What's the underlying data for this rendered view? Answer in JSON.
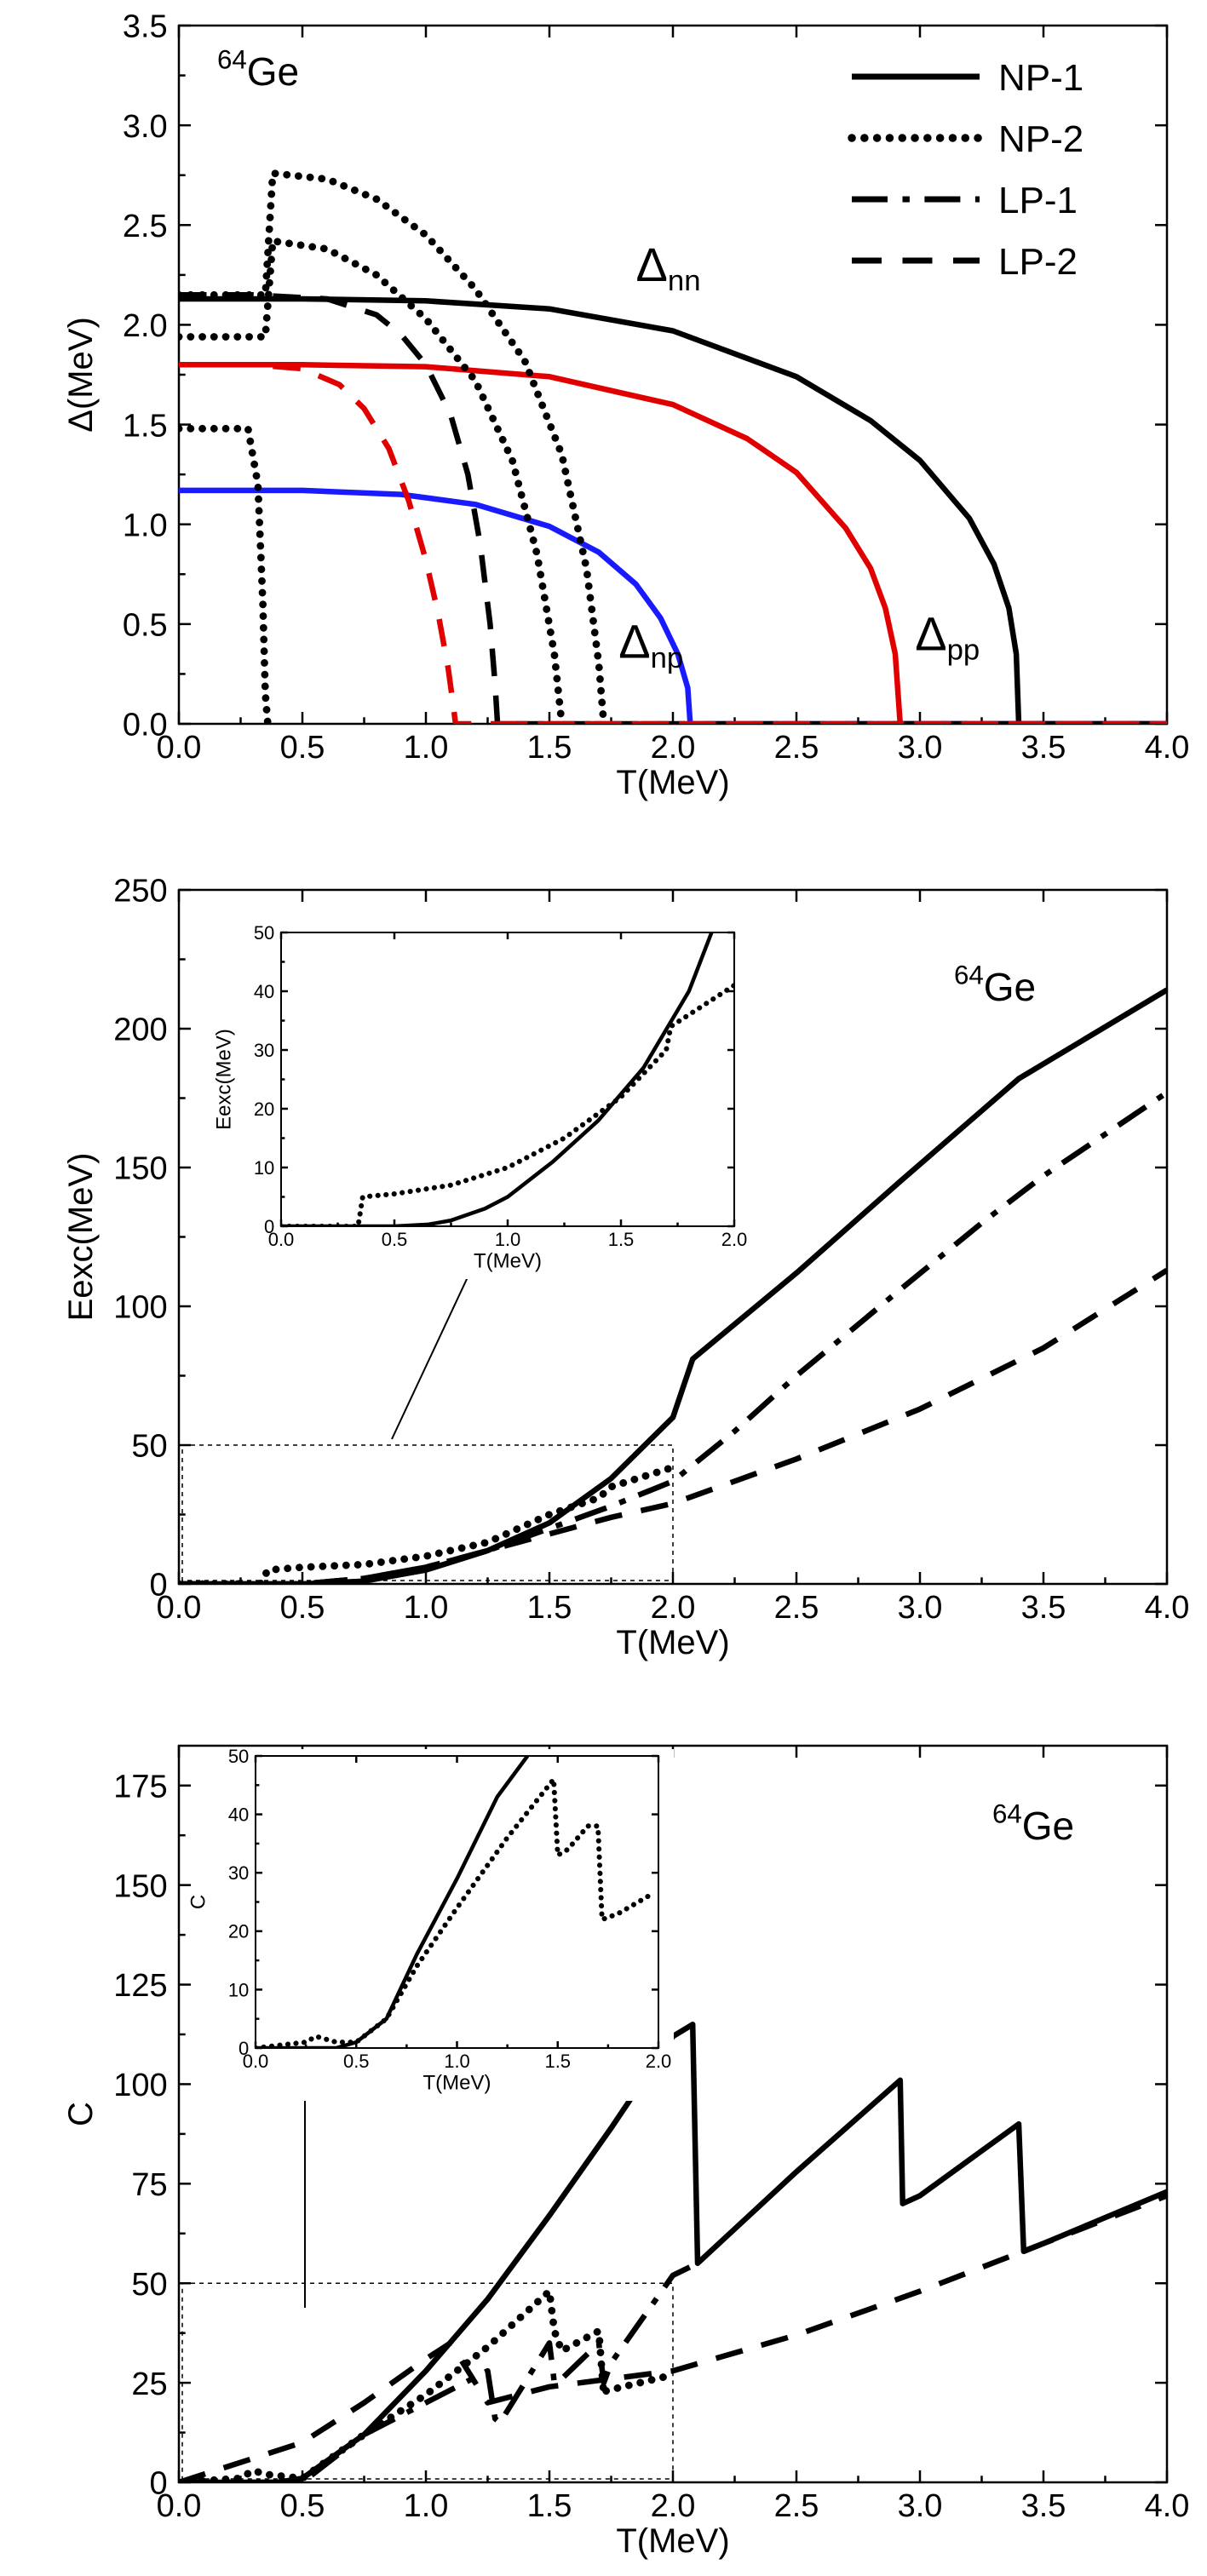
{
  "chart_data": [
    {
      "type": "line",
      "nucleus_label": {
        "mass": "64",
        "symbol": "Ge"
      },
      "xlabel": "T(MeV)",
      "ylabel": "Δ(MeV)",
      "xlim": [
        0,
        4.0
      ],
      "ylim": [
        0,
        3.5
      ],
      "xticks": [
        "0.0",
        "0.5",
        "1.0",
        "1.5",
        "2.0",
        "2.5",
        "3.0",
        "3.5",
        "4.0"
      ],
      "yticks": [
        "0.0",
        "0.5",
        "1.0",
        "1.5",
        "2.0",
        "2.5",
        "3.0",
        "3.5"
      ],
      "legend": {
        "position": "top-right",
        "entries": [
          {
            "name": "NP-1",
            "style": "solid"
          },
          {
            "name": "NP-2",
            "style": "dotted"
          },
          {
            "name": "LP-1",
            "style": "dashdot"
          },
          {
            "name": "LP-2",
            "style": "dashed"
          }
        ]
      },
      "annotations": [
        {
          "text": "Δ",
          "sub": "nn",
          "x": 1.85,
          "y": 2.22
        },
        {
          "text": "Δ",
          "sub": "pp",
          "x": 2.98,
          "y": 0.37
        },
        {
          "text": "Δ",
          "sub": "np",
          "x": 1.78,
          "y": 0.33
        }
      ],
      "series": [
        {
          "style": "solid",
          "color": "#000000",
          "x": [
            0,
            0.5,
            1.0,
            1.5,
            2.0,
            2.5,
            2.8,
            3.0,
            3.2,
            3.3,
            3.36,
            3.39,
            3.4,
            4.0
          ],
          "y": [
            2.13,
            2.13,
            2.12,
            2.08,
            1.97,
            1.74,
            1.52,
            1.32,
            1.03,
            0.8,
            0.58,
            0.35,
            0,
            0
          ]
        },
        {
          "style": "solid",
          "color": "#e00000",
          "x": [
            0,
            0.5,
            1.0,
            1.5,
            2.0,
            2.3,
            2.5,
            2.7,
            2.8,
            2.86,
            2.9,
            2.92,
            4.0
          ],
          "y": [
            1.8,
            1.8,
            1.79,
            1.74,
            1.6,
            1.43,
            1.26,
            0.98,
            0.78,
            0.58,
            0.35,
            0,
            0
          ]
        },
        {
          "style": "solid",
          "color": "#1a1aff",
          "x": [
            0,
            0.5,
            0.9,
            1.2,
            1.5,
            1.7,
            1.85,
            1.95,
            2.02,
            2.06,
            2.07,
            4.0
          ],
          "y": [
            1.17,
            1.17,
            1.15,
            1.1,
            0.99,
            0.86,
            0.7,
            0.53,
            0.35,
            0.18,
            0,
            0
          ]
        },
        {
          "style": "dashed",
          "color": "#000000",
          "x": [
            0,
            0.3,
            0.6,
            0.8,
            0.9,
            1.0,
            1.1,
            1.17,
            1.22,
            1.26,
            1.28,
            1.29,
            4.0
          ],
          "y": [
            2.15,
            2.15,
            2.13,
            2.05,
            1.95,
            1.8,
            1.55,
            1.25,
            0.9,
            0.5,
            0.2,
            0,
            0
          ]
        },
        {
          "style": "dashed",
          "color": "#e00000",
          "x": [
            0,
            0.3,
            0.5,
            0.65,
            0.75,
            0.85,
            0.93,
            1.0,
            1.05,
            1.09,
            1.11,
            1.12,
            4.0
          ],
          "y": [
            1.8,
            1.8,
            1.78,
            1.7,
            1.58,
            1.38,
            1.12,
            0.82,
            0.55,
            0.28,
            0.1,
            0,
            0
          ]
        },
        {
          "style": "dotted",
          "color": "#000000",
          "x": [
            0,
            0.28,
            0.32,
            0.34,
            0.35,
            0.36
          ],
          "y": [
            1.48,
            1.48,
            1.2,
            0.6,
            0.15,
            0
          ]
        },
        {
          "style": "dotted",
          "color": "#000000",
          "x": [
            0,
            0.35,
            0.38,
            0.6,
            0.8,
            1.0,
            1.2,
            1.35,
            1.45,
            1.52,
            1.55
          ],
          "y": [
            1.94,
            1.94,
            2.42,
            2.38,
            2.25,
            2.03,
            1.72,
            1.32,
            0.85,
            0.35,
            0
          ]
        },
        {
          "style": "dotted",
          "color": "#000000",
          "x": [
            0,
            0.35,
            0.38,
            0.6,
            0.8,
            1.0,
            1.2,
            1.4,
            1.55,
            1.65,
            1.7,
            1.72
          ],
          "y": [
            2.15,
            2.15,
            2.76,
            2.73,
            2.63,
            2.45,
            2.18,
            1.82,
            1.35,
            0.78,
            0.3,
            0
          ]
        },
        {
          "style": "dashed",
          "color": "#e00000",
          "x": [
            1.3,
            4.0
          ],
          "y": [
            0,
            0
          ]
        }
      ]
    },
    {
      "type": "line",
      "nucleus_label": {
        "mass": "64",
        "symbol": "Ge"
      },
      "xlabel": "T(MeV)",
      "ylabel": "Eexc(MeV)",
      "xlim": [
        0,
        4.0
      ],
      "ylim": [
        0,
        250
      ],
      "xticks": [
        "0.0",
        "0.5",
        "1.0",
        "1.5",
        "2.0",
        "2.5",
        "3.0",
        "3.5",
        "4.0"
      ],
      "yticks": [
        "0",
        "50",
        "100",
        "150",
        "200",
        "250"
      ],
      "series": [
        {
          "style": "solid",
          "x": [
            0,
            0.5,
            0.75,
            1.0,
            1.25,
            1.5,
            1.75,
            2.0,
            2.08,
            2.5,
            2.92,
            3.4,
            4.0
          ],
          "y": [
            0,
            0,
            1,
            5,
            12,
            22,
            38,
            60,
            81,
            112,
            145,
            182,
            214
          ]
        },
        {
          "style": "dotted",
          "x": [
            0,
            0.33,
            0.36,
            0.5,
            0.75,
            1.0,
            1.25,
            1.5,
            1.7,
            1.75,
            2.0
          ],
          "y": [
            0,
            0,
            5,
            6,
            7,
            10,
            15,
            25,
            31,
            35,
            42
          ]
        },
        {
          "style": "dashdot",
          "x": [
            0,
            0.5,
            0.75,
            1.0,
            1.25,
            1.5,
            1.75,
            2.0,
            2.25,
            2.5,
            2.92,
            3.25,
            3.5,
            4.0
          ],
          "y": [
            0,
            0,
            2,
            6,
            12,
            20,
            28,
            37,
            55,
            75,
            106,
            130,
            147,
            177
          ]
        },
        {
          "style": "dashed",
          "x": [
            0,
            0.5,
            0.75,
            1.0,
            1.25,
            1.5,
            1.75,
            2.0,
            2.5,
            3.0,
            3.5,
            4.0
          ],
          "y": [
            0,
            0,
            2,
            6,
            12,
            18,
            24,
            29,
            45,
            63,
            85,
            113
          ]
        }
      ],
      "inset": {
        "xlabel": "T(MeV)",
        "ylabel": "Eexc(MeV)",
        "xlim": [
          0,
          2.0
        ],
        "ylim": [
          0,
          50
        ],
        "xticks": [
          "0.0",
          "0.5",
          "1.0",
          "1.5",
          "2.0"
        ],
        "yticks": [
          "0",
          "10",
          "20",
          "30",
          "40",
          "50"
        ],
        "series": [
          {
            "style": "solid",
            "x": [
              0,
              0.5,
              0.65,
              0.75,
              0.9,
              1.0,
              1.2,
              1.4,
              1.6,
              1.8,
              1.9
            ],
            "y": [
              0,
              0,
              0.3,
              1,
              3,
              5,
              11,
              18,
              27,
              40,
              50
            ]
          },
          {
            "style": "dotted",
            "x": [
              0,
              0.34,
              0.36,
              0.5,
              0.75,
              1.0,
              1.25,
              1.5,
              1.7,
              1.72,
              1.8,
              2.0
            ],
            "y": [
              0,
              0,
              5,
              5.5,
              7,
              10,
              15,
              22,
              30,
              34,
              36,
              41
            ]
          }
        ]
      },
      "zoom_box": {
        "x": [
          0,
          2.0
        ],
        "y": [
          0,
          50
        ]
      }
    },
    {
      "type": "line",
      "nucleus_label": {
        "mass": "64",
        "symbol": "Ge"
      },
      "xlabel": "T(MeV)",
      "ylabel": "C",
      "xlim": [
        0,
        4.0
      ],
      "ylim": [
        0,
        185
      ],
      "xticks": [
        "0.0",
        "0.5",
        "1.0",
        "1.5",
        "2.0",
        "2.5",
        "3.0",
        "3.5",
        "4.0"
      ],
      "yticks": [
        "0",
        "25",
        "50",
        "75",
        "100",
        "125",
        "150",
        "175"
      ],
      "series": [
        {
          "style": "solid",
          "x": [
            0,
            0.4,
            0.5,
            0.75,
            1.0,
            1.25,
            1.5,
            1.75,
            2.0,
            2.08,
            2.1,
            2.5,
            2.92,
            2.93,
            3.0,
            3.4,
            3.42,
            3.5,
            4.0
          ],
          "y": [
            0,
            0,
            1,
            12,
            28,
            46,
            67,
            89,
            112,
            115,
            55,
            78,
            101,
            70,
            72,
            90,
            58,
            60,
            73
          ]
        },
        {
          "style": "dotted",
          "x": [
            0,
            0.25,
            0.3,
            0.35,
            0.5,
            0.75,
            1.0,
            1.25,
            1.5,
            1.52,
            1.55,
            1.7,
            1.72,
            1.73,
            2.0
          ],
          "y": [
            0,
            1,
            3,
            2,
            1,
            12,
            22,
            34,
            48,
            38,
            33,
            38,
            22,
            23,
            27
          ]
        },
        {
          "style": "dashdot",
          "x": [
            0,
            0.5,
            0.75,
            1.0,
            1.25,
            1.28,
            1.3,
            1.5,
            1.52,
            1.55,
            1.7,
            1.72,
            1.75,
            2.0,
            2.1
          ],
          "y": [
            0,
            0,
            12,
            20,
            28,
            16,
            15,
            35,
            25,
            26,
            35,
            25,
            30,
            52,
            55
          ]
        },
        {
          "style": "dashed",
          "x": [
            0,
            0.5,
            0.75,
            1.0,
            1.1,
            1.25,
            1.5,
            2.0,
            2.5,
            3.0,
            3.5,
            4.0
          ],
          "y": [
            0,
            10,
            20,
            31,
            35,
            20,
            24,
            28,
            37,
            48,
            60,
            72
          ]
        }
      ],
      "inset": {
        "xlabel": "T(MeV)",
        "ylabel": "C",
        "xlim": [
          0,
          2.0
        ],
        "ylim": [
          0,
          50
        ],
        "xticks": [
          "0.0",
          "0.5",
          "1.0",
          "1.5",
          "2.0"
        ],
        "yticks": [
          "0",
          "10",
          "20",
          "30",
          "40",
          "50"
        ],
        "series": [
          {
            "style": "solid",
            "x": [
              0,
              0.4,
              0.5,
              0.65,
              0.8,
              1.0,
              1.2,
              1.35
            ],
            "y": [
              0,
              0,
              1,
              5,
              16,
              29,
              43,
              50
            ]
          },
          {
            "style": "dotted",
            "x": [
              0,
              0.25,
              0.3,
              0.4,
              0.5,
              0.65,
              0.8,
              1.0,
              1.25,
              1.48,
              1.5,
              1.55,
              1.65,
              1.7,
              1.72,
              1.8,
              1.95
            ],
            "y": [
              0,
              1,
              2,
              1,
              1,
              5,
              14,
              24,
              36,
              46,
              33,
              34,
              38,
              38,
              22,
              23,
              26
            ]
          }
        ]
      },
      "zoom_box": {
        "x": [
          0,
          2.0
        ],
        "y": [
          0,
          50
        ]
      }
    }
  ]
}
